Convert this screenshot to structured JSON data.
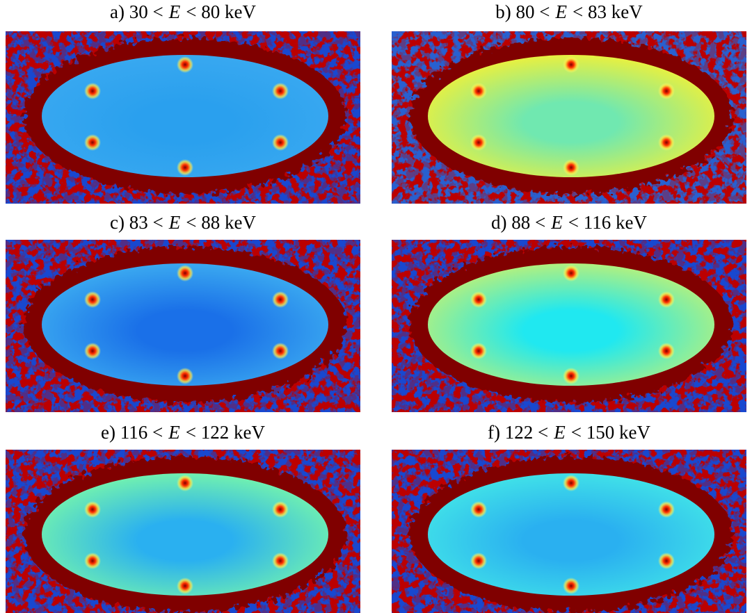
{
  "panels": [
    {
      "caption": [
        "a) 30 <",
        "E",
        "< 80 keV"
      ]
    },
    {
      "caption": [
        "b) 80 <",
        "E",
        "< 83 keV"
      ]
    },
    {
      "caption": [
        "c) 83 <",
        "E",
        "< 88 keV"
      ]
    },
    {
      "caption": [
        "d) 88 <",
        "E",
        "< 116 keV"
      ]
    },
    {
      "caption": [
        "e) 116 <",
        "E",
        "< 122 keV"
      ]
    },
    {
      "caption": [
        "f) 122 <",
        "E",
        "< 150 keV"
      ]
    }
  ]
}
